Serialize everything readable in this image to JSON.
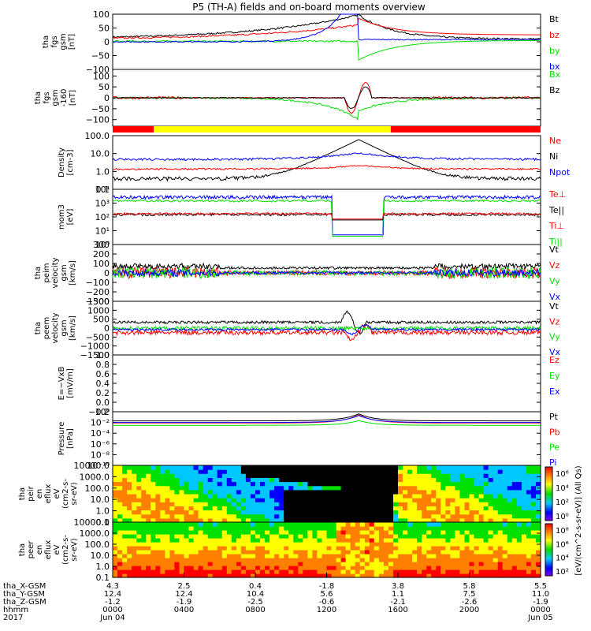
{
  "title": "P5 (TH-A) fields and on-board moments overview",
  "chart_data": {
    "type": "line",
    "time_axis": {
      "range_hours": [
        0,
        24
      ],
      "ticks_hours": [
        0,
        4,
        8,
        12,
        16,
        20,
        24
      ],
      "row_labels": [
        "tha_X-GSM",
        "tha_Y-GSM",
        "tha_Z-GSM",
        "hhmm",
        "2017"
      ],
      "columns": [
        [
          "4.3",
          "12.4",
          "-1.2",
          "0000",
          "Jun 04"
        ],
        [
          "2.5",
          "12.4",
          "-1.9",
          "0400",
          ""
        ],
        [
          "0.4",
          "10.4",
          "-2.5",
          "0800",
          ""
        ],
        [
          "-1.8",
          "5.6",
          "-0.6",
          "1200",
          ""
        ],
        [
          "3.8",
          "1.1",
          "-2.1",
          "1600",
          ""
        ],
        [
          "5.8",
          "7.5",
          "-2.6",
          "2000",
          ""
        ],
        [
          "5.5",
          "11.0",
          "-1.9",
          "0000",
          "Jun 05"
        ]
      ]
    },
    "colors": {
      "black": "#000000",
      "red": "#ff0000",
      "green": "#00e000",
      "blue": "#0000ff",
      "yellow": "#ffff00"
    },
    "panels": [
      {
        "id": "fgs-gsm",
        "ylabel": [
          "tha",
          "fgs",
          "gsm",
          "[nT]"
        ],
        "scale": "linear",
        "ylim": [
          -100,
          100
        ],
        "ticks": [
          100,
          50,
          0,
          -50,
          -100
        ],
        "tick_labels": [
          "100",
          "50",
          "0",
          "−50",
          "−100"
        ],
        "legend": [
          {
            "name": "Bt",
            "color": "#000000"
          },
          {
            "name": "bz",
            "color": "#ff0000"
          },
          {
            "name": "by",
            "color": "#00e000"
          },
          {
            "name": "bx",
            "color": "#0000ff"
          }
        ]
      },
      {
        "id": "fgs-gsm-filtered",
        "ylabel": [
          "tha",
          "fgs",
          "gsm",
          "-160",
          "[nT]"
        ],
        "scale": "linear",
        "ylim": [
          -130,
          130
        ],
        "ticks": [
          100,
          50,
          0,
          -50,
          -100
        ],
        "tick_labels": [
          "100",
          "50",
          "0",
          "−50",
          "−100"
        ],
        "legend": [
          {
            "name": "Bx",
            "color": "#00e000"
          },
          {
            "name": "Bz",
            "color": "#000000"
          }
        ]
      },
      {
        "id": "density",
        "ylabel": [
          "Density",
          "[cm-3]"
        ],
        "scale": "log",
        "ylim": [
          0.1,
          100
        ],
        "ticks": [
          100,
          10,
          1,
          0.1
        ],
        "tick_labels": [
          "100.0",
          "10.0",
          "1.0",
          "0.1"
        ],
        "legend": [
          {
            "name": "Ne",
            "color": "#ff0000"
          },
          {
            "name": "Ni",
            "color": "#000000"
          },
          {
            "name": "Npot",
            "color": "#0000ff"
          }
        ]
      },
      {
        "id": "temperature",
        "ylabel": [
          "mom3",
          "[eV]"
        ],
        "scale": "log",
        "ylim": [
          1,
          10000
        ],
        "ticks": [
          10000,
          1000,
          100,
          10,
          1
        ],
        "tick_labels": [
          "10⁴",
          "10³",
          "10²",
          "10¹",
          "10⁰"
        ],
        "legend": [
          {
            "name": "Te⊥",
            "color": "#ff0000"
          },
          {
            "name": "Te||",
            "color": "#000000"
          },
          {
            "name": "Ti⊥",
            "color": "#ff0000"
          },
          {
            "name": "Ti||",
            "color": "#00e000"
          }
        ]
      },
      {
        "id": "ion-velocity",
        "ylabel": [
          "tha",
          "peim",
          "velocity",
          "gsm",
          "[km/s]"
        ],
        "scale": "linear",
        "ylim": [
          -300,
          300
        ],
        "ticks": [
          300,
          200,
          100,
          0,
          -100,
          -200,
          -300
        ],
        "tick_labels": [
          "300",
          "200",
          "100",
          "0",
          "−100",
          "−200",
          "−300"
        ],
        "legend": [
          {
            "name": "Vt",
            "color": "#000000"
          },
          {
            "name": "Vz",
            "color": "#ff0000"
          },
          {
            "name": "Vy",
            "color": "#00e000"
          },
          {
            "name": "Vx",
            "color": "#0000ff"
          }
        ]
      },
      {
        "id": "electron-velocity",
        "ylabel": [
          "tha",
          "peem",
          "velocity",
          "gsm",
          "[km/s]"
        ],
        "scale": "linear",
        "ylim": [
          -1500,
          1500
        ],
        "ticks": [
          1500,
          1000,
          500,
          0,
          -500,
          -1000,
          -1500
        ],
        "tick_labels": [
          "1500",
          "1000",
          "500",
          "0",
          "−500",
          "−1000",
          "−1500"
        ],
        "legend": [
          {
            "name": "Vt",
            "color": "#000000"
          },
          {
            "name": "Vz",
            "color": "#ff0000"
          },
          {
            "name": "Vy",
            "color": "#00e000"
          },
          {
            "name": "Vx",
            "color": "#0000ff"
          }
        ]
      },
      {
        "id": "efield",
        "ylabel": [
          "E=−VxB",
          "[mV/m]"
        ],
        "scale": "linear",
        "ylim": [
          -0.2,
          1.0
        ],
        "ticks": [
          1.0,
          0.8,
          0.6,
          0.4,
          0.2,
          0.0,
          -0.2
        ],
        "tick_labels": [
          "1.0",
          "0.8",
          "0.6",
          "0.4",
          "0.2",
          "0.0",
          "−0.2"
        ],
        "legend": [
          {
            "name": "Ez",
            "color": "#ff0000"
          },
          {
            "name": "Ey",
            "color": "#00e000"
          },
          {
            "name": "Ex",
            "color": "#0000ff"
          }
        ]
      },
      {
        "id": "pressure",
        "ylabel": [
          "Pressure",
          "[nPa]"
        ],
        "scale": "log",
        "ylim": [
          1e-10,
          1
        ],
        "ticks": [
          1,
          0.01,
          0.0001,
          1e-06,
          1e-08,
          1e-10
        ],
        "tick_labels": [
          "10⁰",
          "10⁻²",
          "10⁻⁴",
          "10⁻⁶",
          "10⁻⁸",
          "10⁻¹⁰"
        ],
        "legend": [
          {
            "name": "Pt",
            "color": "#000000"
          },
          {
            "name": "Pb",
            "color": "#ff0000"
          },
          {
            "name": "Pe",
            "color": "#00e000"
          },
          {
            "name": "Pi",
            "color": "#0000ff"
          }
        ]
      },
      {
        "id": "ion-spectrogram",
        "ylabel": [
          "tha",
          "peir",
          "en",
          "eflux",
          "eV",
          "(cm2-s-",
          "sr-eV)"
        ],
        "scale": "log",
        "ylim": [
          0.1,
          10000
        ],
        "ticks": [
          10000,
          1000,
          100,
          10,
          1,
          0.1
        ],
        "tick_labels": [
          "10000.0",
          "1000.0",
          "100.0",
          "10.0",
          "1.0",
          "0.1"
        ]
      },
      {
        "id": "electron-spectrogram",
        "ylabel": [
          "tha",
          "peer",
          "en",
          "eflux",
          "eV",
          "(cm2-s-",
          "sr-eV)"
        ],
        "scale": "log",
        "ylim": [
          0.1,
          10000
        ],
        "ticks": [
          10000,
          1000,
          100,
          10,
          1,
          0.1
        ],
        "tick_labels": [
          "10000.0",
          "1000.0",
          "100.0",
          "10.0",
          "1.0",
          "0.1"
        ]
      }
    ],
    "mode_bar": [
      {
        "from_hour": 0,
        "to_hour": 2.3,
        "color": "#ff0000"
      },
      {
        "from_hour": 2.3,
        "to_hour": 15.6,
        "color": "#ffff00"
      },
      {
        "from_hour": 15.6,
        "to_hour": 24,
        "color": "#ff0000"
      }
    ],
    "colorbars": [
      {
        "for": "ion-spectrogram",
        "tick_labels": [
          "10⁶",
          "10⁴",
          "10²",
          "10⁰"
        ]
      },
      {
        "for": "electron-spectrogram",
        "tick_labels": [
          "10⁸",
          "10⁶",
          "10⁴",
          "10²"
        ]
      }
    ],
    "colorbar_label": "[eV/(cm^2-s-sr-eV)] (All Qs)"
  }
}
